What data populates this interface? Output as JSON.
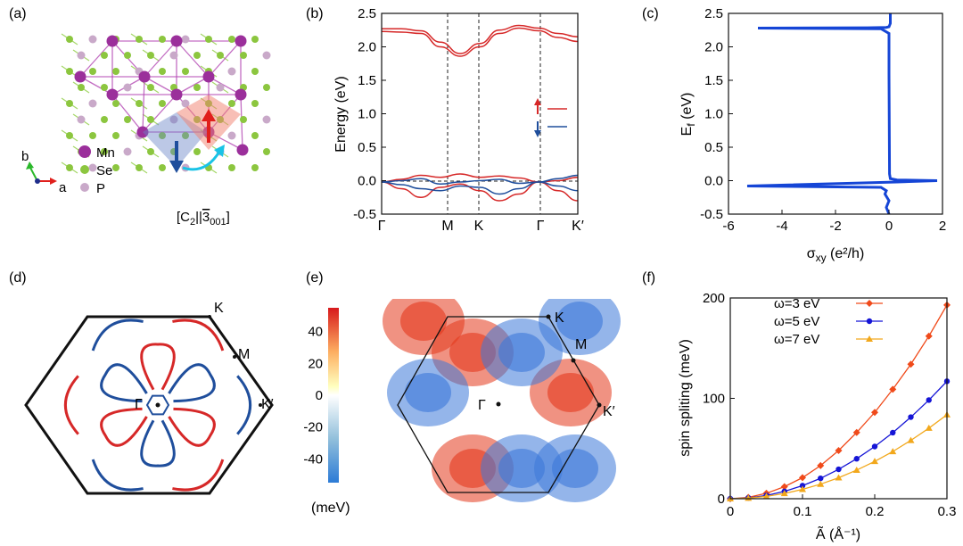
{
  "panel_labels": [
    "(a)",
    "(b)",
    "(c)",
    "(d)",
    "(e)",
    "(f)"
  ],
  "panel_a": {
    "legend": [
      {
        "label": "Mn",
        "color": "#9b2f9b"
      },
      {
        "label": "Se",
        "color": "#8cc63f"
      },
      {
        "label": "P",
        "color": "#c9a9c9"
      }
    ],
    "axis_b": "b",
    "axis_a": "a",
    "symmetry_label": "[C2||3̅001]",
    "symmetry_main": "[C",
    "symmetry_sub2": "2",
    "symmetry_mid": "||",
    "symmetry_three": "3",
    "symmetry_sub001": "001",
    "symmetry_close": "]"
  },
  "chart_data": [
    {
      "id": "b",
      "type": "line",
      "ylabel": "Energy (eV)",
      "ylim": [
        -0.5,
        2.5
      ],
      "yticks": [
        "-0.5",
        "0.0",
        "0.5",
        "1.0",
        "1.5",
        "2.0",
        "2.5"
      ],
      "xticks": [
        "Γ",
        "M",
        "K",
        "Γ",
        "K′"
      ],
      "legend_spin_up_color": "#d62828",
      "legend_spin_down_color": "#1f4e9c",
      "series": [
        {
          "spin": "up",
          "band": "upper-1",
          "x": [
            0,
            0.1,
            0.2,
            0.3,
            0.4,
            0.5,
            0.6,
            0.7,
            0.8,
            0.9,
            1.0
          ],
          "values": [
            2.27,
            2.27,
            2.24,
            2.07,
            1.9,
            2.05,
            2.25,
            2.32,
            2.28,
            2.2,
            2.15
          ]
        },
        {
          "spin": "up",
          "band": "upper-2",
          "x": [
            0,
            0.1,
            0.2,
            0.3,
            0.4,
            0.5,
            0.6,
            0.7,
            0.8,
            0.9,
            1.0
          ],
          "values": [
            2.23,
            2.22,
            2.2,
            2.0,
            1.86,
            2.0,
            2.2,
            2.28,
            2.24,
            2.14,
            2.08
          ]
        },
        {
          "spin": "up",
          "band": "valence-1",
          "x": [
            0,
            0.1,
            0.2,
            0.3,
            0.4,
            0.5,
            0.6,
            0.7,
            0.8,
            0.9,
            1.0
          ],
          "values": [
            -0.02,
            0.02,
            0.08,
            0.05,
            0.1,
            0.05,
            0.07,
            0.04,
            -0.02,
            0.0,
            0.05
          ]
        },
        {
          "spin": "up",
          "band": "valence-2",
          "x": [
            0,
            0.1,
            0.2,
            0.3,
            0.4,
            0.5,
            0.6,
            0.7,
            0.8,
            0.9,
            1.0
          ],
          "values": [
            -0.02,
            -0.12,
            -0.25,
            -0.1,
            -0.05,
            -0.15,
            -0.3,
            -0.2,
            -0.02,
            -0.15,
            -0.3
          ]
        },
        {
          "spin": "down",
          "band": "valence-3",
          "x": [
            0,
            0.1,
            0.2,
            0.3,
            0.4,
            0.5,
            0.6,
            0.7,
            0.8,
            0.9,
            1.0
          ],
          "values": [
            -0.02,
            0.0,
            0.03,
            -0.05,
            -0.02,
            0.0,
            0.02,
            -0.04,
            -0.02,
            0.03,
            0.08
          ]
        },
        {
          "spin": "down",
          "band": "valence-4",
          "x": [
            0,
            0.1,
            0.2,
            0.3,
            0.4,
            0.5,
            0.6,
            0.7,
            0.8,
            0.9,
            1.0
          ],
          "values": [
            -0.02,
            -0.06,
            -0.12,
            -0.15,
            -0.08,
            -0.1,
            -0.2,
            -0.12,
            -0.02,
            -0.08,
            -0.15
          ]
        }
      ]
    },
    {
      "id": "c",
      "type": "line",
      "xlabel_main": "σ",
      "xlabel_sub": "xy",
      "xlabel_unit": " (e²/h)",
      "ylabel_main": "E",
      "ylabel_sub": "f",
      "ylabel_unit": " (eV)",
      "xlim": [
        -6,
        2
      ],
      "ylim": [
        -0.5,
        2.5
      ],
      "xticks": [
        "-6",
        "-4",
        "-2",
        "0",
        "2"
      ],
      "yticks": [
        "-0.5",
        "0.0",
        "0.5",
        "1.0",
        "1.5",
        "2.0",
        "2.5"
      ],
      "series": [
        {
          "name": "",
          "x": [
            0.05,
            0.05,
            0.0,
            -0.1,
            -0.8,
            -4.9,
            -0.3,
            0.0,
            0.0,
            0.02,
            0.05,
            0.3,
            1.8,
            0.3,
            -5.3,
            -0.3,
            -0.1,
            -0.15,
            0.0,
            -0.1,
            0.0
          ],
          "y": [
            2.5,
            2.35,
            2.3,
            2.29,
            2.285,
            2.28,
            2.27,
            2.2,
            1.6,
            0.1,
            0.03,
            0.01,
            0.0,
            -0.02,
            -0.08,
            -0.1,
            -0.15,
            -0.2,
            -0.3,
            -0.4,
            -0.5
          ]
        }
      ]
    },
    {
      "id": "e",
      "type": "heatmap",
      "colorbar_ticks": [
        "40",
        "20",
        "0",
        "-20",
        "-40"
      ],
      "colorbar_range": [
        -55,
        55
      ],
      "colorbar_unit": "(meV)",
      "point_labels": [
        "K",
        "M",
        "Γ",
        "K′"
      ]
    },
    {
      "id": "f",
      "type": "line",
      "ylabel": "spin spliting (meV)",
      "xlabel_main": "Ã",
      "xlabel_unit": " (Å⁻¹)",
      "xlim": [
        0,
        0.3
      ],
      "ylim": [
        0,
        200
      ],
      "xticks": [
        "0",
        "0.1",
        "0.2",
        "0.3"
      ],
      "yticks": [
        "0",
        "100",
        "200"
      ],
      "x": [
        0,
        0.025,
        0.05,
        0.075,
        0.1,
        0.125,
        0.15,
        0.175,
        0.2,
        0.225,
        0.25,
        0.275,
        0.3
      ],
      "series": [
        {
          "name": "ω=3 eV",
          "color": "#f04a1a",
          "marker": "diamond",
          "values": [
            0,
            1.3,
            5.4,
            12,
            21,
            33,
            48,
            66,
            86,
            109,
            134,
            162,
            193
          ]
        },
        {
          "name": "ω=5 eV",
          "color": "#1515d6",
          "marker": "circle",
          "values": [
            0,
            0.8,
            3.2,
            7.3,
            13,
            20.3,
            29.3,
            39.8,
            52,
            65.8,
            81.3,
            98.3,
            117
          ]
        },
        {
          "name": "ω=7 eV",
          "color": "#f2a81c",
          "marker": "triangle",
          "values": [
            0,
            0.6,
            2.3,
            5.2,
            9.3,
            14.5,
            20.9,
            28.5,
            37.2,
            47,
            58.1,
            70.3,
            83.7
          ]
        }
      ]
    }
  ],
  "panel_d": {
    "point_labels": [
      "K",
      "M",
      "Γ",
      "K′"
    ]
  }
}
